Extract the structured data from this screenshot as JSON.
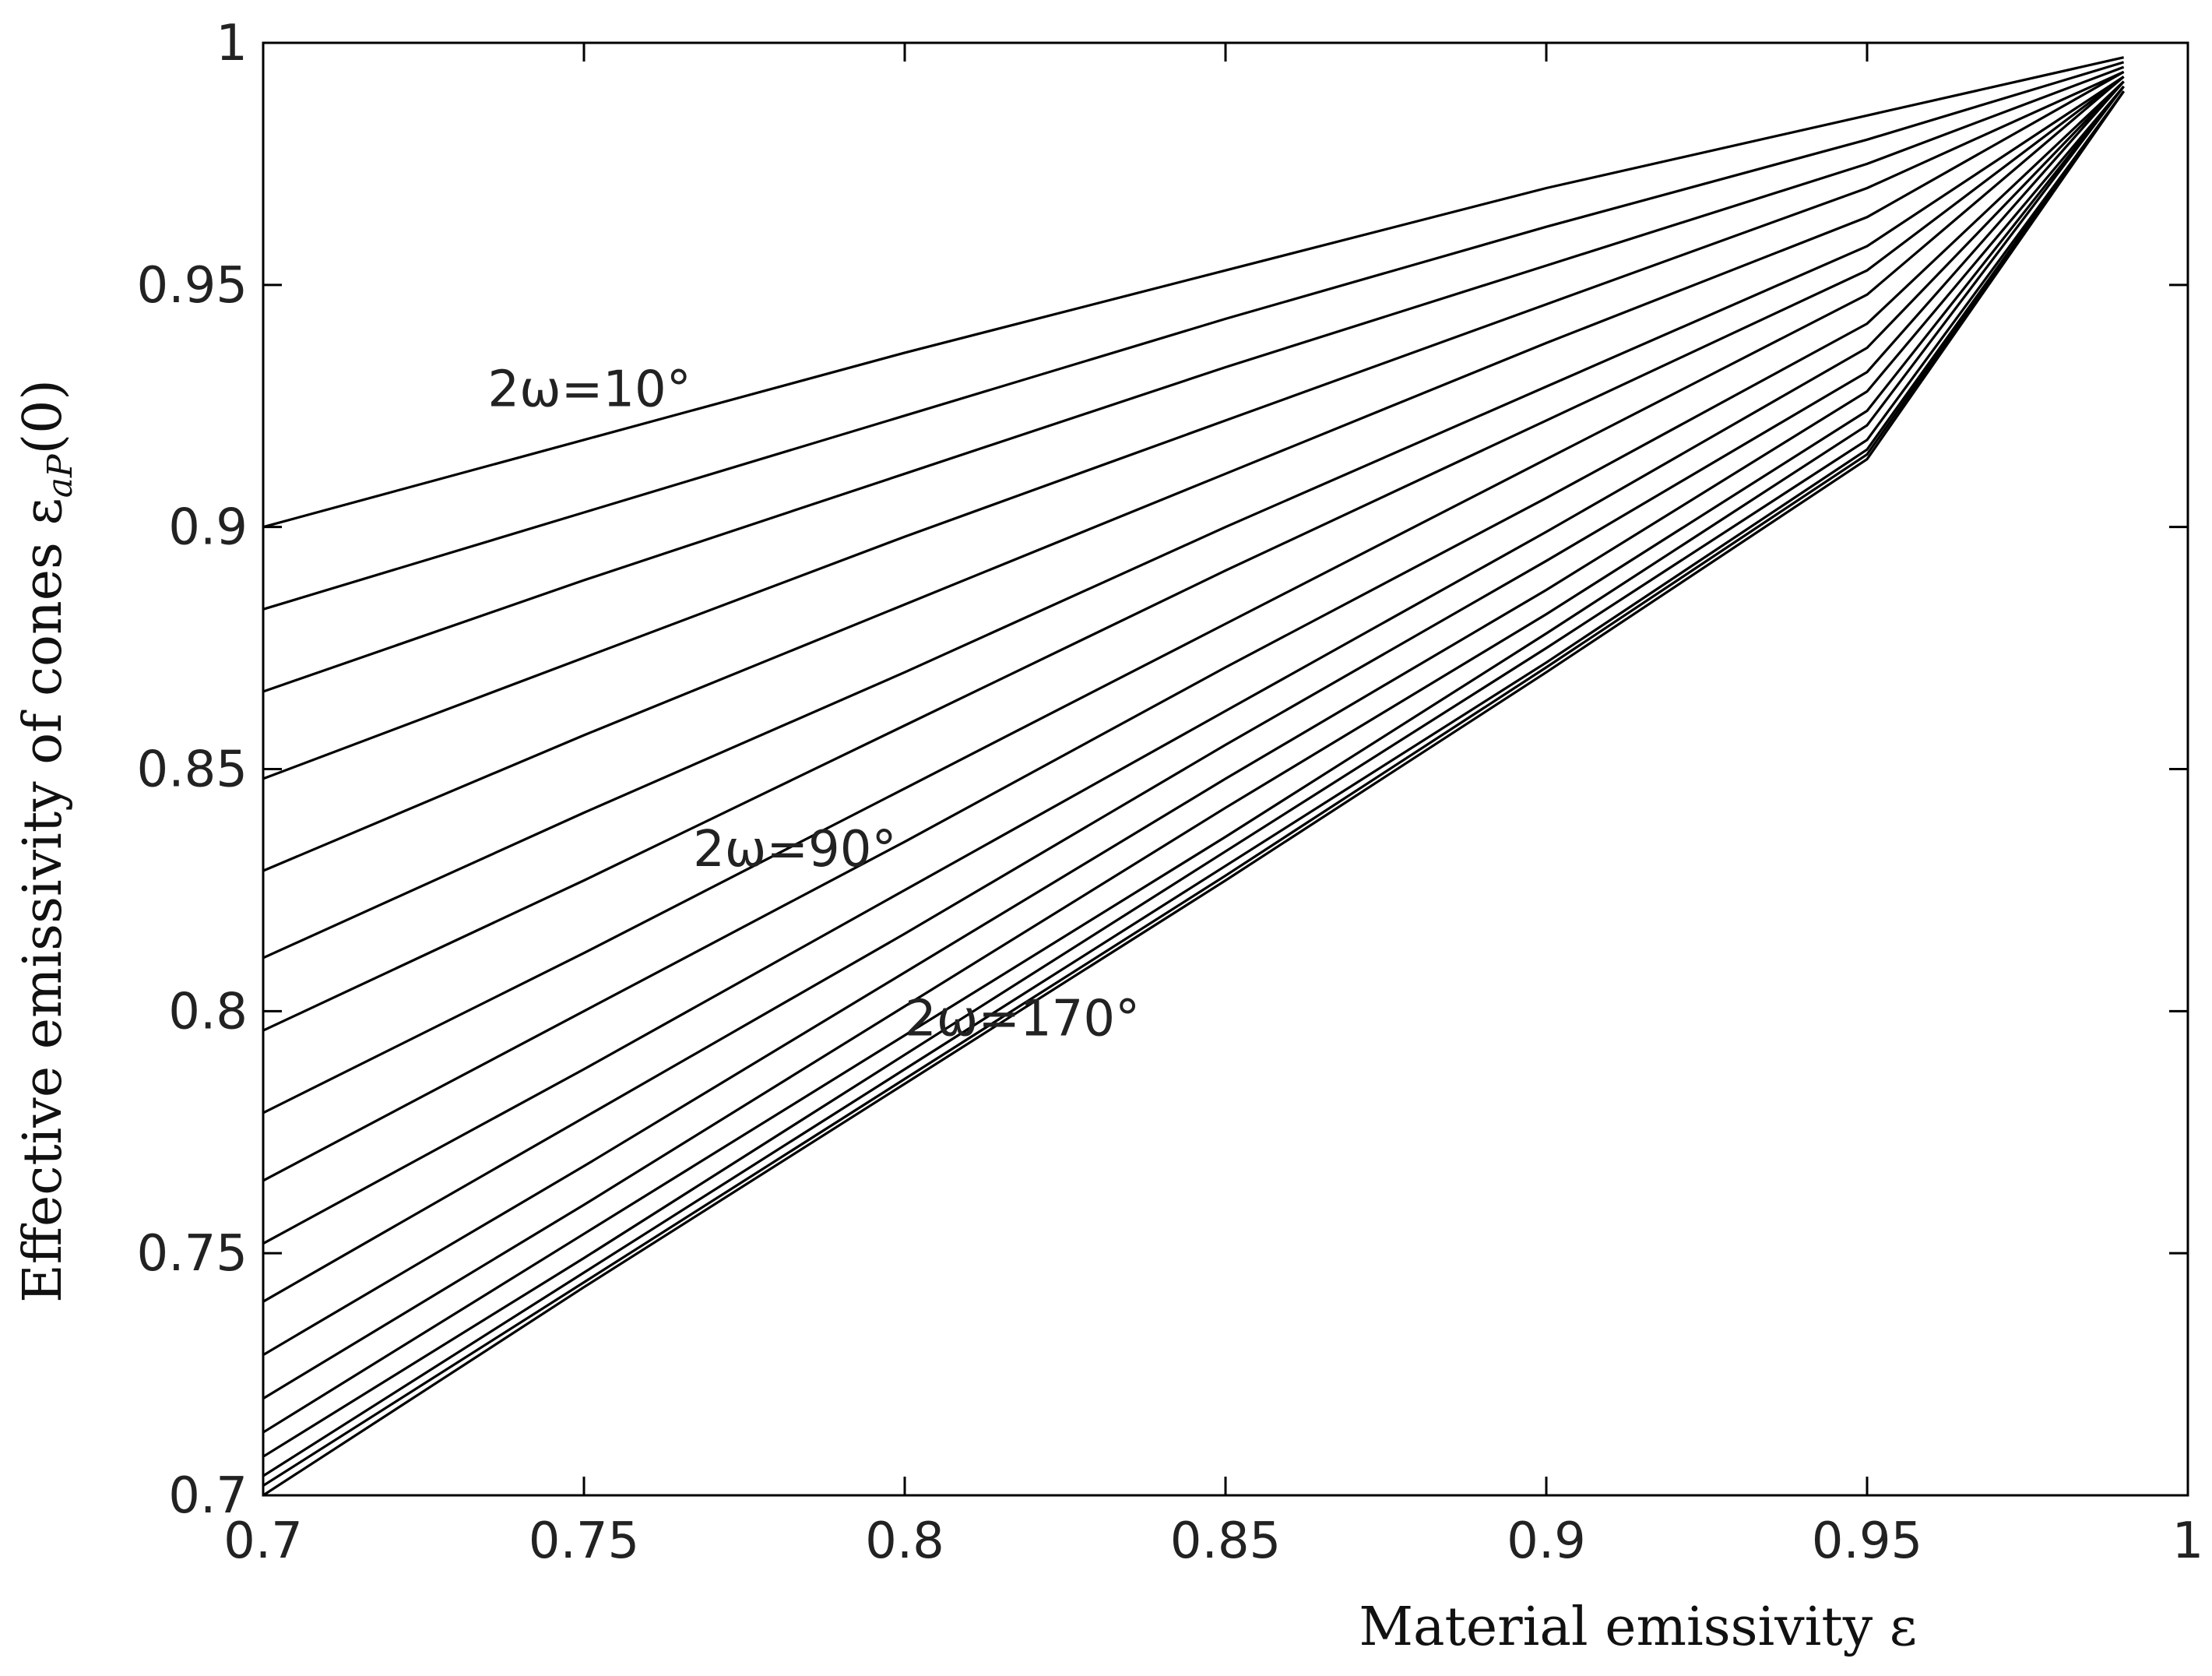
{
  "chart_data": {
    "type": "line",
    "title": "",
    "xlabel": "Material emissivity ε",
    "ylabel": "Effective emissivity of cones ε",
    "ylabel_subscript": "aP",
    "ylabel_suffix": "(0)",
    "xlim": [
      0.7,
      1.0
    ],
    "ylim": [
      0.7,
      1.0
    ],
    "xticks": [
      "0.7",
      "0.75",
      "0.8",
      "0.85",
      "0.9",
      "0.95",
      "1"
    ],
    "yticks": [
      "0.7",
      "0.75",
      "0.8",
      "0.85",
      "0.9",
      "0.95",
      "1"
    ],
    "grid": false,
    "legend": "none",
    "annotations": [
      {
        "text": "2ω=10°",
        "x": 0.735,
        "y": 0.925
      },
      {
        "text": "2ω=90°",
        "x": 0.767,
        "y": 0.83
      },
      {
        "text": "2ω=170°",
        "x": 0.8,
        "y": 0.795
      }
    ],
    "x": [
      0.7,
      0.75,
      0.8,
      0.85,
      0.9,
      0.95,
      0.99
    ],
    "series": [
      {
        "values": [
          0.9,
          0.918,
          0.936,
          0.953,
          0.97,
          0.985,
          0.997
        ]
      },
      {
        "values": [
          0.883,
          0.903,
          0.923,
          0.943,
          0.962,
          0.98,
          0.996
        ]
      },
      {
        "values": [
          0.866,
          0.889,
          0.911,
          0.933,
          0.954,
          0.975,
          0.995
        ]
      },
      {
        "values": [
          0.848,
          0.873,
          0.898,
          0.922,
          0.946,
          0.97,
          0.994
        ]
      },
      {
        "values": [
          0.829,
          0.857,
          0.884,
          0.911,
          0.938,
          0.964,
          0.994
        ]
      },
      {
        "values": [
          0.811,
          0.841,
          0.87,
          0.9,
          0.929,
          0.958,
          0.993
        ]
      },
      {
        "values": [
          0.796,
          0.827,
          0.859,
          0.891,
          0.922,
          0.953,
          0.993
        ]
      },
      {
        "values": [
          0.779,
          0.812,
          0.846,
          0.88,
          0.914,
          0.948,
          0.993
        ]
      },
      {
        "values": [
          0.765,
          0.8,
          0.835,
          0.871,
          0.906,
          0.942,
          0.992
        ]
      },
      {
        "values": [
          0.752,
          0.788,
          0.825,
          0.862,
          0.899,
          0.937,
          0.992
        ]
      },
      {
        "values": [
          0.74,
          0.778,
          0.816,
          0.855,
          0.893,
          0.932,
          0.992
        ]
      },
      {
        "values": [
          0.729,
          0.768,
          0.808,
          0.848,
          0.887,
          0.928,
          0.991
        ]
      },
      {
        "values": [
          0.72,
          0.76,
          0.801,
          0.842,
          0.882,
          0.924,
          0.991
        ]
      },
      {
        "values": [
          0.713,
          0.754,
          0.795,
          0.836,
          0.878,
          0.921,
          0.991
        ]
      },
      {
        "values": [
          0.708,
          0.749,
          0.791,
          0.833,
          0.875,
          0.918,
          0.99
        ]
      },
      {
        "values": [
          0.704,
          0.746,
          0.788,
          0.83,
          0.872,
          0.916,
          0.99
        ]
      },
      {
        "values": [
          0.702,
          0.744,
          0.786,
          0.828,
          0.871,
          0.915,
          0.99
        ]
      },
      {
        "values": [
          0.7,
          0.743,
          0.785,
          0.827,
          0.87,
          0.914,
          0.99
        ]
      }
    ]
  }
}
